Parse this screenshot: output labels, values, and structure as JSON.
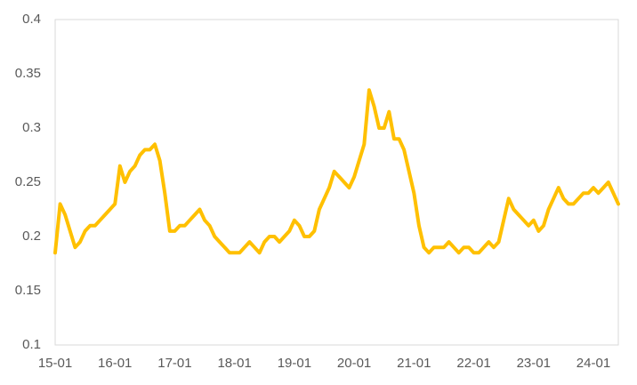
{
  "chart_data": {
    "type": "line",
    "x": [
      "15-01",
      null,
      null,
      null,
      null,
      null,
      null,
      null,
      null,
      null,
      null,
      null,
      "16-01",
      null,
      null,
      null,
      null,
      null,
      null,
      null,
      null,
      null,
      null,
      null,
      "17-01",
      null,
      null,
      null,
      null,
      null,
      null,
      null,
      null,
      null,
      null,
      null,
      "18-01",
      null,
      null,
      null,
      null,
      null,
      null,
      null,
      null,
      null,
      null,
      null,
      "19-01",
      null,
      null,
      null,
      null,
      null,
      null,
      null,
      null,
      null,
      null,
      null,
      "20-01",
      null,
      null,
      null,
      null,
      null,
      null,
      null,
      null,
      null,
      null,
      null,
      "21-01",
      null,
      null,
      null,
      null,
      null,
      null,
      null,
      null,
      null,
      null,
      null,
      "22-01",
      null,
      null,
      null,
      null,
      null,
      null,
      null,
      null,
      null,
      null,
      null,
      "23-01",
      null,
      null,
      null,
      null,
      null,
      null,
      null,
      null,
      null,
      null,
      null,
      "24-01",
      null,
      null,
      null,
      null,
      null
    ],
    "values": [
      0.185,
      0.23,
      0.22,
      0.205,
      0.19,
      0.195,
      0.205,
      0.21,
      0.21,
      0.215,
      0.22,
      0.225,
      0.23,
      0.265,
      0.25,
      0.26,
      0.265,
      0.275,
      0.28,
      0.28,
      0.285,
      0.27,
      0.24,
      0.205,
      0.205,
      0.21,
      0.21,
      0.215,
      0.22,
      0.225,
      0.215,
      0.21,
      0.2,
      0.195,
      0.19,
      0.185,
      0.185,
      0.185,
      0.19,
      0.195,
      0.19,
      0.185,
      0.195,
      0.2,
      0.2,
      0.195,
      0.2,
      0.205,
      0.215,
      0.21,
      0.2,
      0.2,
      0.205,
      0.225,
      0.235,
      0.245,
      0.26,
      0.255,
      0.25,
      0.245,
      0.255,
      0.27,
      0.285,
      0.335,
      0.32,
      0.3,
      0.3,
      0.315,
      0.29,
      0.29,
      0.28,
      0.26,
      0.24,
      0.21,
      0.19,
      0.185,
      0.19,
      0.19,
      0.19,
      0.195,
      0.19,
      0.185,
      0.19,
      0.19,
      0.185,
      0.185,
      0.19,
      0.195,
      0.19,
      0.195,
      0.215,
      0.235,
      0.225,
      0.22,
      0.215,
      0.21,
      0.215,
      0.205,
      0.21,
      0.225,
      0.235,
      0.245,
      0.235,
      0.23,
      0.23,
      0.235,
      0.24,
      0.24,
      0.245,
      0.24,
      0.245,
      0.25,
      0.24,
      0.23
    ],
    "color": "#ffc000",
    "ylim": [
      0.1,
      0.4
    ],
    "yticks": [
      0.1,
      0.15,
      0.2,
      0.25,
      0.3,
      0.35,
      0.4
    ],
    "grid": false
  }
}
